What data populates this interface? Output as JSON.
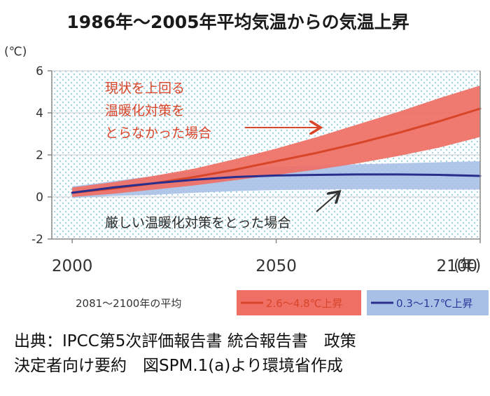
{
  "chart_data": {
    "type": "area",
    "title": "1986年～2005年平均気温からの気温上昇",
    "unit_label": "(℃)",
    "x_unit_label": "(年)",
    "xlim": [
      1995,
      2100
    ],
    "ylim": [
      -2,
      6
    ],
    "x_ticks": [
      "2000",
      "2050",
      "2100"
    ],
    "y_ticks": [
      "6",
      "4",
      "2",
      "0",
      "-2"
    ],
    "series": [
      {
        "name": "2.6～4.8℃上昇",
        "color": "#d8462a",
        "band_color": "#ef6f64",
        "x": [
          2000,
          2010,
          2020,
          2030,
          2040,
          2050,
          2060,
          2070,
          2080,
          2090,
          2100
        ],
        "y": [
          0.2,
          0.4,
          0.65,
          0.95,
          1.3,
          1.7,
          2.1,
          2.55,
          3.05,
          3.6,
          4.2
        ],
        "lower": [
          0.0,
          0.15,
          0.35,
          0.55,
          0.8,
          1.05,
          1.3,
          1.6,
          1.95,
          2.35,
          2.85
        ],
        "upper": [
          0.45,
          0.7,
          1.0,
          1.35,
          1.8,
          2.3,
          2.85,
          3.45,
          4.05,
          4.7,
          5.3
        ]
      },
      {
        "name": "0.3～1.7℃上昇",
        "color": "#2a2e8c",
        "band_color": "#a8c0e6",
        "x": [
          2000,
          2010,
          2020,
          2030,
          2040,
          2050,
          2060,
          2070,
          2080,
          2090,
          2100
        ],
        "y": [
          0.2,
          0.45,
          0.65,
          0.82,
          0.95,
          1.02,
          1.05,
          1.07,
          1.07,
          1.05,
          1.0
        ],
        "lower": [
          -0.05,
          0.05,
          0.1,
          0.2,
          0.28,
          0.33,
          0.35,
          0.37,
          0.37,
          0.35,
          0.35
        ],
        "upper": [
          0.5,
          0.75,
          1.0,
          1.2,
          1.35,
          1.45,
          1.5,
          1.55,
          1.6,
          1.65,
          1.7
        ]
      }
    ],
    "annotations": {
      "red": [
        "現状を上回る",
        "温暖化対策を",
        "とらなかった場合"
      ],
      "blue": "厳しい温暖化対策をとった場合"
    },
    "legend_label": "2081～2100年の平均",
    "legend_placement": "bottom"
  },
  "source_lines": [
    "出典：IPCC第5次評価報告書 統合報告書　政策",
    "決定者向け要約　図SPM.1(a)より環境省作成"
  ]
}
